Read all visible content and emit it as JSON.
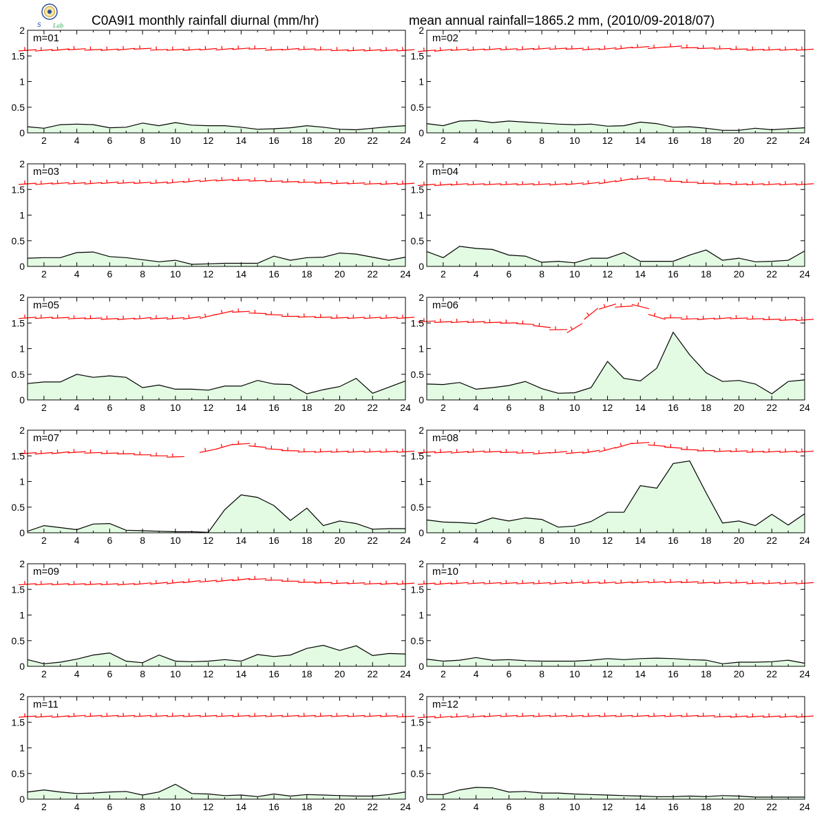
{
  "header": {
    "title_left": "C0A9I1 monthly rainfall diurnal (mm/hr)",
    "title_right": "mean annual rainfall=1865.2 mm, (2010/09-2018/07)",
    "logo_text": "Lab"
  },
  "colors": {
    "fill": "#e2fbe2",
    "line": "#000000",
    "wind": "#ff0000",
    "frame": "#000000"
  },
  "chart_data": [
    {
      "type": "area",
      "title": "m=01",
      "x": [
        1,
        2,
        3,
        4,
        5,
        6,
        7,
        8,
        9,
        10,
        11,
        12,
        13,
        14,
        15,
        16,
        17,
        18,
        19,
        20,
        21,
        22,
        23,
        24
      ],
      "xticks": [
        2,
        4,
        6,
        8,
        10,
        12,
        14,
        16,
        18,
        20,
        22,
        24
      ],
      "ylim": [
        0,
        2
      ],
      "yticks": [
        0,
        0.5,
        1,
        1.5,
        2
      ],
      "values": [
        0.12,
        0.09,
        0.16,
        0.17,
        0.16,
        0.1,
        0.11,
        0.19,
        0.14,
        0.2,
        0.15,
        0.14,
        0.14,
        0.11,
        0.07,
        0.08,
        0.1,
        0.14,
        0.11,
        0.07,
        0.06,
        0.09,
        0.12,
        0.14
      ],
      "wind_y": [
        1.61,
        1.61,
        1.62,
        1.63,
        1.62,
        1.62,
        1.63,
        1.64,
        1.62,
        1.62,
        1.62,
        1.63,
        1.63,
        1.64,
        1.64,
        1.62,
        1.63,
        1.63,
        1.62,
        1.61,
        1.61,
        1.61,
        1.61,
        1.61
      ]
    },
    {
      "type": "area",
      "title": "m=02",
      "x": [
        1,
        2,
        3,
        4,
        5,
        6,
        7,
        8,
        9,
        10,
        11,
        12,
        13,
        14,
        15,
        16,
        17,
        18,
        19,
        20,
        21,
        22,
        23,
        24
      ],
      "xticks": [
        2,
        4,
        6,
        8,
        10,
        12,
        14,
        16,
        18,
        20,
        22,
        24
      ],
      "ylim": [
        0,
        2
      ],
      "yticks": [
        0,
        0.5,
        1,
        1.5,
        2
      ],
      "values": [
        0.18,
        0.14,
        0.23,
        0.24,
        0.2,
        0.23,
        0.21,
        0.19,
        0.17,
        0.16,
        0.17,
        0.13,
        0.14,
        0.21,
        0.18,
        0.11,
        0.12,
        0.09,
        0.05,
        0.05,
        0.09,
        0.06,
        0.08,
        0.1
      ],
      "wind_y": [
        1.6,
        1.61,
        1.62,
        1.62,
        1.63,
        1.63,
        1.63,
        1.64,
        1.64,
        1.64,
        1.63,
        1.64,
        1.65,
        1.67,
        1.66,
        1.68,
        1.66,
        1.65,
        1.64,
        1.63,
        1.62,
        1.62,
        1.62,
        1.62
      ]
    },
    {
      "type": "area",
      "title": "m=03",
      "x": [
        1,
        2,
        3,
        4,
        5,
        6,
        7,
        8,
        9,
        10,
        11,
        12,
        13,
        14,
        15,
        16,
        17,
        18,
        19,
        20,
        21,
        22,
        23,
        24
      ],
      "xticks": [
        2,
        4,
        6,
        8,
        10,
        12,
        14,
        16,
        18,
        20,
        22,
        24
      ],
      "ylim": [
        0,
        2
      ],
      "yticks": [
        0,
        0.5,
        1,
        1.5,
        2
      ],
      "values": [
        0.16,
        0.17,
        0.17,
        0.27,
        0.28,
        0.19,
        0.17,
        0.13,
        0.09,
        0.12,
        0.04,
        0.05,
        0.06,
        0.06,
        0.06,
        0.2,
        0.12,
        0.17,
        0.18,
        0.26,
        0.24,
        0.18,
        0.12,
        0.18
      ],
      "wind_y": [
        1.61,
        1.61,
        1.62,
        1.62,
        1.62,
        1.63,
        1.63,
        1.63,
        1.63,
        1.64,
        1.66,
        1.67,
        1.68,
        1.68,
        1.67,
        1.66,
        1.65,
        1.64,
        1.63,
        1.62,
        1.62,
        1.61,
        1.61,
        1.61
      ]
    },
    {
      "type": "area",
      "title": "m=04",
      "x": [
        1,
        2,
        3,
        4,
        5,
        6,
        7,
        8,
        9,
        10,
        11,
        12,
        13,
        14,
        15,
        16,
        17,
        18,
        19,
        20,
        21,
        22,
        23,
        24
      ],
      "xticks": [
        2,
        4,
        6,
        8,
        10,
        12,
        14,
        16,
        18,
        20,
        22,
        24
      ],
      "ylim": [
        0,
        2
      ],
      "yticks": [
        0,
        0.5,
        1,
        1.5,
        2
      ],
      "values": [
        0.29,
        0.17,
        0.39,
        0.35,
        0.33,
        0.22,
        0.2,
        0.08,
        0.1,
        0.07,
        0.16,
        0.16,
        0.27,
        0.1,
        0.1,
        0.1,
        0.22,
        0.32,
        0.12,
        0.16,
        0.09,
        0.1,
        0.12,
        0.3
      ],
      "wind_y": [
        1.59,
        1.59,
        1.6,
        1.6,
        1.6,
        1.6,
        1.6,
        1.6,
        1.6,
        1.61,
        1.62,
        1.64,
        1.68,
        1.71,
        1.69,
        1.66,
        1.64,
        1.62,
        1.61,
        1.6,
        1.6,
        1.6,
        1.6,
        1.6
      ]
    },
    {
      "type": "area",
      "title": "m=05",
      "x": [
        1,
        2,
        3,
        4,
        5,
        6,
        7,
        8,
        9,
        10,
        11,
        12,
        13,
        14,
        15,
        16,
        17,
        18,
        19,
        20,
        21,
        22,
        23,
        24
      ],
      "xticks": [
        2,
        4,
        6,
        8,
        10,
        12,
        14,
        16,
        18,
        20,
        22,
        24
      ],
      "ylim": [
        0,
        2
      ],
      "yticks": [
        0,
        0.5,
        1,
        1.5,
        2
      ],
      "values": [
        0.32,
        0.35,
        0.35,
        0.5,
        0.44,
        0.47,
        0.44,
        0.24,
        0.29,
        0.21,
        0.21,
        0.19,
        0.27,
        0.27,
        0.38,
        0.31,
        0.3,
        0.12,
        0.2,
        0.26,
        0.42,
        0.13,
        0.25,
        0.37
      ],
      "wind_y": [
        1.6,
        1.6,
        1.6,
        1.59,
        1.59,
        1.58,
        1.58,
        1.59,
        1.59,
        1.59,
        1.6,
        1.63,
        1.7,
        1.72,
        1.69,
        1.66,
        1.63,
        1.62,
        1.61,
        1.6,
        1.6,
        1.6,
        1.6,
        1.6
      ]
    },
    {
      "type": "area",
      "title": "m=06",
      "x": [
        1,
        2,
        3,
        4,
        5,
        6,
        7,
        8,
        9,
        10,
        11,
        12,
        13,
        14,
        15,
        16,
        17,
        18,
        19,
        20,
        21,
        22,
        23,
        24
      ],
      "xticks": [
        2,
        4,
        6,
        8,
        10,
        12,
        14,
        16,
        18,
        20,
        22,
        24
      ],
      "ylim": [
        0,
        2
      ],
      "yticks": [
        0,
        0.5,
        1,
        1.5,
        2
      ],
      "values": [
        0.31,
        0.3,
        0.34,
        0.21,
        0.24,
        0.28,
        0.36,
        0.22,
        0.13,
        0.14,
        0.24,
        0.75,
        0.42,
        0.37,
        0.62,
        1.32,
        0.88,
        0.53,
        0.36,
        0.38,
        0.31,
        0.12,
        0.36,
        0.39
      ],
      "wind_y": [
        1.53,
        1.52,
        1.52,
        1.52,
        1.51,
        1.5,
        1.48,
        1.43,
        1.37,
        1.4,
        1.68,
        1.82,
        1.82,
        1.82,
        1.62,
        1.6,
        1.58,
        1.58,
        1.59,
        1.59,
        1.58,
        1.57,
        1.56,
        1.56
      ]
    },
    {
      "type": "area",
      "title": "m=07",
      "x": [
        1,
        2,
        3,
        4,
        5,
        6,
        7,
        8,
        9,
        10,
        11,
        12,
        13,
        14,
        15,
        16,
        17,
        18,
        19,
        20,
        21,
        22,
        23,
        24
      ],
      "xticks": [
        2,
        4,
        6,
        8,
        10,
        12,
        14,
        16,
        18,
        20,
        22,
        24
      ],
      "ylim": [
        0,
        2
      ],
      "yticks": [
        0,
        0.5,
        1,
        1.5,
        2
      ],
      "values": [
        0.03,
        0.14,
        0.1,
        0.06,
        0.17,
        0.18,
        0.05,
        0.04,
        0.03,
        0.02,
        0.02,
        0.01,
        0.45,
        0.74,
        0.69,
        0.53,
        0.24,
        0.48,
        0.14,
        0.23,
        0.18,
        0.07,
        0.08,
        0.08
      ],
      "wind_y": [
        1.55,
        1.55,
        1.56,
        1.57,
        1.56,
        1.55,
        1.54,
        1.52,
        1.5,
        1.48,
        null,
        1.6,
        1.68,
        1.73,
        1.68,
        1.63,
        1.6,
        1.58,
        1.58,
        1.58,
        1.58,
        1.58,
        1.58,
        1.58
      ]
    },
    {
      "type": "area",
      "title": "m=08",
      "x": [
        1,
        2,
        3,
        4,
        5,
        6,
        7,
        8,
        9,
        10,
        11,
        12,
        13,
        14,
        15,
        16,
        17,
        18,
        19,
        20,
        21,
        22,
        23,
        24
      ],
      "xticks": [
        2,
        4,
        6,
        8,
        10,
        12,
        14,
        16,
        18,
        20,
        22,
        24
      ],
      "ylim": [
        0,
        2
      ],
      "yticks": [
        0,
        0.5,
        1,
        1.5,
        2
      ],
      "values": [
        0.25,
        0.21,
        0.2,
        0.18,
        0.29,
        0.23,
        0.29,
        0.26,
        0.11,
        0.13,
        0.22,
        0.4,
        0.4,
        0.92,
        0.87,
        1.35,
        1.4,
        0.78,
        0.19,
        0.23,
        0.14,
        0.36,
        0.15,
        0.37
      ],
      "wind_y": [
        1.57,
        1.57,
        1.57,
        1.58,
        1.58,
        1.57,
        1.56,
        1.55,
        1.57,
        1.56,
        1.58,
        1.62,
        1.7,
        1.75,
        1.7,
        1.66,
        1.62,
        1.6,
        1.59,
        1.59,
        1.58,
        1.58,
        1.58,
        1.58
      ]
    },
    {
      "type": "area",
      "title": "m=09",
      "x": [
        1,
        2,
        3,
        4,
        5,
        6,
        7,
        8,
        9,
        10,
        11,
        12,
        13,
        14,
        15,
        16,
        17,
        18,
        19,
        20,
        21,
        22,
        23,
        24
      ],
      "xticks": [
        2,
        4,
        6,
        8,
        10,
        12,
        14,
        16,
        18,
        20,
        22,
        24
      ],
      "ylim": [
        0,
        2
      ],
      "yticks": [
        0,
        0.5,
        1,
        1.5,
        2
      ],
      "values": [
        0.13,
        0.05,
        0.08,
        0.14,
        0.22,
        0.26,
        0.1,
        0.07,
        0.22,
        0.1,
        0.09,
        0.1,
        0.13,
        0.1,
        0.23,
        0.19,
        0.22,
        0.35,
        0.41,
        0.31,
        0.4,
        0.21,
        0.25,
        0.24
      ],
      "wind_y": [
        1.6,
        1.6,
        1.6,
        1.6,
        1.6,
        1.6,
        1.6,
        1.61,
        1.62,
        1.63,
        1.65,
        1.66,
        1.67,
        1.69,
        1.7,
        1.68,
        1.66,
        1.64,
        1.63,
        1.62,
        1.62,
        1.61,
        1.61,
        1.61
      ]
    },
    {
      "type": "area",
      "title": "m=10",
      "x": [
        1,
        2,
        3,
        4,
        5,
        6,
        7,
        8,
        9,
        10,
        11,
        12,
        13,
        14,
        15,
        16,
        17,
        18,
        19,
        20,
        21,
        22,
        23,
        24
      ],
      "xticks": [
        2,
        4,
        6,
        8,
        10,
        12,
        14,
        16,
        18,
        20,
        22,
        24
      ],
      "ylim": [
        0,
        2
      ],
      "yticks": [
        0,
        0.5,
        1,
        1.5,
        2
      ],
      "values": [
        0.14,
        0.1,
        0.12,
        0.17,
        0.12,
        0.13,
        0.11,
        0.1,
        0.1,
        0.1,
        0.12,
        0.15,
        0.13,
        0.15,
        0.16,
        0.15,
        0.13,
        0.12,
        0.05,
        0.08,
        0.08,
        0.09,
        0.12,
        0.06
      ],
      "wind_y": [
        1.61,
        1.61,
        1.62,
        1.62,
        1.62,
        1.62,
        1.62,
        1.62,
        1.62,
        1.63,
        1.63,
        1.63,
        1.63,
        1.64,
        1.64,
        1.64,
        1.64,
        1.63,
        1.63,
        1.63,
        1.62,
        1.62,
        1.62,
        1.62
      ]
    },
    {
      "type": "area",
      "title": "m=11",
      "x": [
        1,
        2,
        3,
        4,
        5,
        6,
        7,
        8,
        9,
        10,
        11,
        12,
        13,
        14,
        15,
        16,
        17,
        18,
        19,
        20,
        21,
        22,
        23,
        24
      ],
      "xticks": [
        2,
        4,
        6,
        8,
        10,
        12,
        14,
        16,
        18,
        20,
        22,
        24
      ],
      "ylim": [
        0,
        2
      ],
      "yticks": [
        0,
        0.5,
        1,
        1.5,
        2
      ],
      "values": [
        0.14,
        0.18,
        0.14,
        0.11,
        0.12,
        0.14,
        0.15,
        0.08,
        0.14,
        0.29,
        0.11,
        0.1,
        0.07,
        0.08,
        0.05,
        0.1,
        0.06,
        0.09,
        0.08,
        0.07,
        0.06,
        0.06,
        0.09,
        0.14
      ],
      "wind_y": [
        1.61,
        1.61,
        1.61,
        1.62,
        1.62,
        1.62,
        1.62,
        1.62,
        1.62,
        1.62,
        1.62,
        1.62,
        1.62,
        1.62,
        1.62,
        1.62,
        1.62,
        1.62,
        1.62,
        1.62,
        1.62,
        1.62,
        1.62,
        1.61
      ]
    },
    {
      "type": "area",
      "title": "m=12",
      "x": [
        1,
        2,
        3,
        4,
        5,
        6,
        7,
        8,
        9,
        10,
        11,
        12,
        13,
        14,
        15,
        16,
        17,
        18,
        19,
        20,
        21,
        22,
        23,
        24
      ],
      "xticks": [
        2,
        4,
        6,
        8,
        10,
        12,
        14,
        16,
        18,
        20,
        22,
        24
      ],
      "ylim": [
        0,
        2
      ],
      "yticks": [
        0,
        0.5,
        1,
        1.5,
        2
      ],
      "values": [
        0.09,
        0.09,
        0.18,
        0.23,
        0.22,
        0.14,
        0.15,
        0.12,
        0.12,
        0.1,
        0.09,
        0.08,
        0.07,
        0.06,
        0.05,
        0.05,
        0.06,
        0.05,
        0.07,
        0.06,
        0.04,
        0.04,
        0.04,
        0.04
      ],
      "wind_y": [
        1.6,
        1.6,
        1.61,
        1.61,
        1.62,
        1.62,
        1.62,
        1.62,
        1.62,
        1.62,
        1.62,
        1.62,
        1.62,
        1.62,
        1.62,
        1.62,
        1.62,
        1.62,
        1.61,
        1.61,
        1.61,
        1.61,
        1.61,
        1.61
      ]
    }
  ]
}
